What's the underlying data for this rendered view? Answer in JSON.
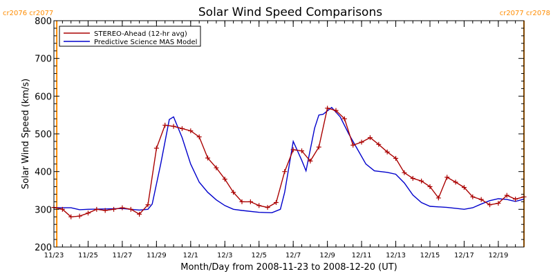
{
  "chart_data": {
    "type": "line",
    "title": "Solar Wind Speed Comparisons",
    "xlabel": "Month/Day from 2008-11-23 to 2008-12-20 (UT)",
    "ylabel": "Solar Wind Speed (km/s)",
    "ylim": [
      200,
      800
    ],
    "yticks": [
      200,
      300,
      400,
      500,
      600,
      700,
      800
    ],
    "xlim": [
      "2008-11-23 00:00",
      "2008-12-20 12:00"
    ],
    "xticks": [
      {
        "label": "11/23",
        "date": "2008-11-23"
      },
      {
        "label": "11/25",
        "date": "2008-11-25"
      },
      {
        "label": "11/27",
        "date": "2008-11-27"
      },
      {
        "label": "11/29",
        "date": "2008-11-29"
      },
      {
        "label": "12/1",
        "date": "2008-12-01"
      },
      {
        "label": "12/3",
        "date": "2008-12-03"
      },
      {
        "label": "12/5",
        "date": "2008-12-05"
      },
      {
        "label": "12/7",
        "date": "2008-12-07"
      },
      {
        "label": "12/9",
        "date": "2008-12-09"
      },
      {
        "label": "12/11",
        "date": "2008-12-11"
      },
      {
        "label": "12/13",
        "date": "2008-12-13"
      },
      {
        "label": "12/15",
        "date": "2008-12-15"
      },
      {
        "label": "12/17",
        "date": "2008-12-17"
      },
      {
        "label": "12/19",
        "date": "2008-12-19"
      }
    ],
    "legend_position": "top-left",
    "carrington_markers": [
      {
        "label": "cr2076 cr2077",
        "date": "2008-11-23 04:00",
        "side": "left"
      },
      {
        "label": "cr2077 cr2078",
        "date": "2008-12-20 12:00",
        "side": "right"
      }
    ],
    "series": [
      {
        "name": "STEREO-Ahead (12-hr avg)",
        "color": "#aa0000",
        "marker": "plus",
        "points": [
          [
            "2008-11-23 00:00",
            305
          ],
          [
            "2008-11-23 12:00",
            300
          ],
          [
            "2008-11-24 00:00",
            280
          ],
          [
            "2008-11-24 12:00",
            282
          ],
          [
            "2008-11-25 00:00",
            290
          ],
          [
            "2008-11-25 12:00",
            300
          ],
          [
            "2008-11-26 00:00",
            297
          ],
          [
            "2008-11-26 12:00",
            300
          ],
          [
            "2008-11-27 00:00",
            304
          ],
          [
            "2008-11-27 12:00",
            300
          ],
          [
            "2008-11-28 00:00",
            287
          ],
          [
            "2008-11-28 12:00",
            312
          ],
          [
            "2008-11-29 00:00",
            462
          ],
          [
            "2008-11-29 12:00",
            523
          ],
          [
            "2008-11-30 00:00",
            520
          ],
          [
            "2008-11-30 12:00",
            514
          ],
          [
            "2008-12-01 00:00",
            508
          ],
          [
            "2008-12-01 12:00",
            492
          ],
          [
            "2008-12-02 00:00",
            436
          ],
          [
            "2008-12-02 12:00",
            410
          ],
          [
            "2008-12-03 00:00",
            380
          ],
          [
            "2008-12-03 12:00",
            345
          ],
          [
            "2008-12-04 00:00",
            320
          ],
          [
            "2008-12-04 12:00",
            320
          ],
          [
            "2008-12-05 00:00",
            310
          ],
          [
            "2008-12-05 12:00",
            305
          ],
          [
            "2008-12-06 00:00",
            318
          ],
          [
            "2008-12-06 12:00",
            400
          ],
          [
            "2008-12-07 00:00",
            458
          ],
          [
            "2008-12-07 12:00",
            455
          ],
          [
            "2008-12-08 00:00",
            428
          ],
          [
            "2008-12-08 12:00",
            465
          ],
          [
            "2008-12-09 00:00",
            568
          ],
          [
            "2008-12-09 12:00",
            562
          ],
          [
            "2008-12-10 00:00",
            540
          ],
          [
            "2008-12-10 12:00",
            470
          ],
          [
            "2008-12-11 00:00",
            478
          ],
          [
            "2008-12-11 12:00",
            490
          ],
          [
            "2008-12-12 00:00",
            472
          ],
          [
            "2008-12-12 12:00",
            452
          ],
          [
            "2008-12-13 00:00",
            435
          ],
          [
            "2008-12-13 12:00",
            397
          ],
          [
            "2008-12-14 00:00",
            382
          ],
          [
            "2008-12-14 12:00",
            375
          ],
          [
            "2008-12-15 00:00",
            360
          ],
          [
            "2008-12-15 12:00",
            330
          ],
          [
            "2008-12-16 00:00",
            385
          ],
          [
            "2008-12-16 12:00",
            372
          ],
          [
            "2008-12-17 00:00",
            358
          ],
          [
            "2008-12-17 12:00",
            333
          ],
          [
            "2008-12-18 00:00",
            326
          ],
          [
            "2008-12-18 12:00",
            312
          ],
          [
            "2008-12-19 00:00",
            316
          ],
          [
            "2008-12-19 12:00",
            337
          ],
          [
            "2008-12-20 00:00",
            327
          ],
          [
            "2008-12-20 12:00",
            333
          ]
        ]
      },
      {
        "name": "Predictive Science MAS Model",
        "color": "#0000cc",
        "marker": "none",
        "points": [
          [
            "2008-11-23 00:00",
            304
          ],
          [
            "2008-11-24 00:00",
            304
          ],
          [
            "2008-11-24 12:00",
            299
          ],
          [
            "2008-11-25 00:00",
            300
          ],
          [
            "2008-11-26 00:00",
            301
          ],
          [
            "2008-11-27 00:00",
            302
          ],
          [
            "2008-11-28 00:00",
            298
          ],
          [
            "2008-11-28 12:00",
            300
          ],
          [
            "2008-11-28 18:00",
            314
          ],
          [
            "2008-11-29 06:00",
            420
          ],
          [
            "2008-11-29 18:00",
            538
          ],
          [
            "2008-11-30 00:00",
            545
          ],
          [
            "2008-11-30 12:00",
            490
          ],
          [
            "2008-12-01 00:00",
            420
          ],
          [
            "2008-12-01 12:00",
            372
          ],
          [
            "2008-12-02 00:00",
            345
          ],
          [
            "2008-12-02 12:00",
            325
          ],
          [
            "2008-12-03 00:00",
            310
          ],
          [
            "2008-12-03 12:00",
            300
          ],
          [
            "2008-12-04 00:00",
            297
          ],
          [
            "2008-12-05 00:00",
            292
          ],
          [
            "2008-12-05 18:00",
            291
          ],
          [
            "2008-12-06 06:00",
            300
          ],
          [
            "2008-12-06 12:00",
            345
          ],
          [
            "2008-12-07 00:00",
            480
          ],
          [
            "2008-12-07 12:00",
            430
          ],
          [
            "2008-12-07 18:00",
            402
          ],
          [
            "2008-12-08 06:00",
            515
          ],
          [
            "2008-12-08 12:00",
            550
          ],
          [
            "2008-12-08 18:00",
            552
          ],
          [
            "2008-12-09 06:00",
            570
          ],
          [
            "2008-12-09 18:00",
            545
          ],
          [
            "2008-12-10 06:00",
            500
          ],
          [
            "2008-12-10 18:00",
            460
          ],
          [
            "2008-12-11 06:00",
            420
          ],
          [
            "2008-12-11 18:00",
            402
          ],
          [
            "2008-12-12 12:00",
            398
          ],
          [
            "2008-12-13 00:00",
            393
          ],
          [
            "2008-12-13 12:00",
            370
          ],
          [
            "2008-12-14 00:00",
            338
          ],
          [
            "2008-12-14 12:00",
            318
          ],
          [
            "2008-12-15 00:00",
            308
          ],
          [
            "2008-12-16 00:00",
            305
          ],
          [
            "2008-12-17 00:00",
            300
          ],
          [
            "2008-12-17 12:00",
            304
          ],
          [
            "2008-12-18 00:00",
            314
          ],
          [
            "2008-12-18 12:00",
            323
          ],
          [
            "2008-12-19 00:00",
            328
          ],
          [
            "2008-12-19 12:00",
            326
          ],
          [
            "2008-12-20 00:00",
            321
          ],
          [
            "2008-12-20 12:00",
            327
          ]
        ]
      }
    ],
    "colors": {
      "axis": "#000000",
      "carrington_marker": "#ff8c00"
    }
  }
}
